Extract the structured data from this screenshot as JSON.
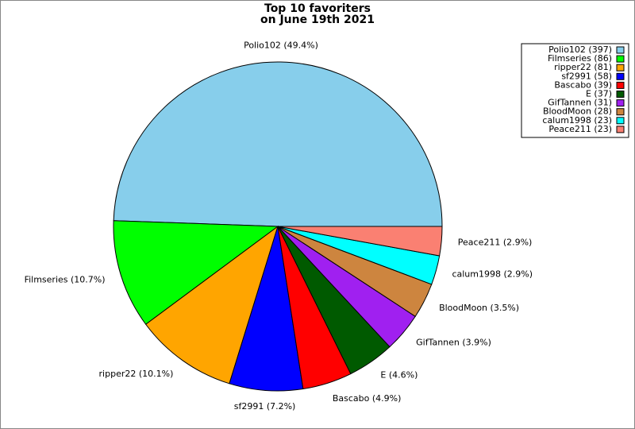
{
  "chart_data": {
    "type": "pie",
    "title": "Top 10 favoriters",
    "subtitle": "on June 19th 2021",
    "values": [
      397,
      86,
      81,
      58,
      39,
      37,
      31,
      28,
      23,
      23
    ],
    "value_labels": [
      "Polio102 (397)",
      "Filmseries (86)",
      "ripper22 (81)",
      "sf2991 (58)",
      "Bascabo (39)",
      "E (37)",
      "GifTannen (31)",
      "BloodMoon (28)",
      "calum1998 (23)",
      "Peace211 (23)"
    ],
    "slice_labels": [
      "Polio102 (49.4%)",
      "Filmseries (10.7%)",
      "ripper22 (10.1%)",
      "sf2991 (7.2%)",
      "Bascabo (4.9%)",
      "E (4.6%)",
      "GifTannen (3.9%)",
      "BloodMoon (3.5%)",
      "calum1998 (2.9%)",
      "Peace211 (2.9%)"
    ],
    "colors": [
      "#87ceeb",
      "#00ff00",
      "#ffa500",
      "#0000ff",
      "#ff0000",
      "#005a00",
      "#a020f0",
      "#cd853f",
      "#00ffff",
      "#fa8072"
    ],
    "legend": "upper right"
  }
}
